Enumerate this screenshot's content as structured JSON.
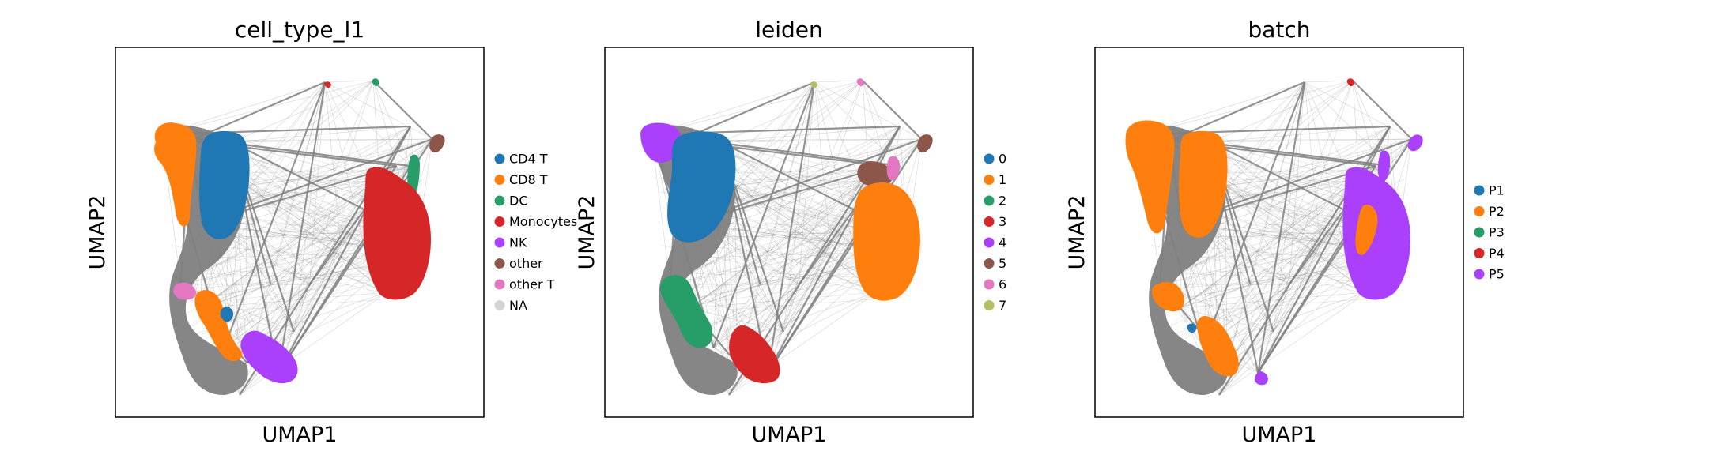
{
  "chart_data": [
    {
      "type": "scatter",
      "title": "cell_type_l1",
      "xlabel": "UMAP1",
      "ylabel": "UMAP2",
      "xlim": [
        0,
        10
      ],
      "ylim": [
        0,
        10
      ],
      "grid": false,
      "legend_position": "right",
      "ticks": false,
      "series": [
        {
          "name": "CD4 T",
          "color": "#1f77b4"
        },
        {
          "name": "CD8 T",
          "color": "#ff7f0e"
        },
        {
          "name": "DC",
          "color": "#279e68"
        },
        {
          "name": "Monocytes",
          "color": "#d62728"
        },
        {
          "name": "NK",
          "color": "#aa40fc"
        },
        {
          "name": "other",
          "color": "#8c564b"
        },
        {
          "name": "other T",
          "color": "#e377c2"
        },
        {
          "name": "NA",
          "color": "#d3d3d3"
        }
      ]
    },
    {
      "type": "scatter",
      "title": "leiden",
      "xlabel": "UMAP1",
      "ylabel": "UMAP2",
      "xlim": [
        0,
        10
      ],
      "ylim": [
        0,
        10
      ],
      "grid": false,
      "legend_position": "right",
      "ticks": false,
      "series": [
        {
          "name": "0",
          "color": "#1f77b4"
        },
        {
          "name": "1",
          "color": "#ff7f0e"
        },
        {
          "name": "2",
          "color": "#279e68"
        },
        {
          "name": "3",
          "color": "#d62728"
        },
        {
          "name": "4",
          "color": "#aa40fc"
        },
        {
          "name": "5",
          "color": "#8c564b"
        },
        {
          "name": "6",
          "color": "#e377c2"
        },
        {
          "name": "7",
          "color": "#b5bd61"
        }
      ]
    },
    {
      "type": "scatter",
      "title": "batch",
      "xlabel": "UMAP1",
      "ylabel": "UMAP2",
      "xlim": [
        0,
        10
      ],
      "ylim": [
        0,
        10
      ],
      "grid": false,
      "legend_position": "right",
      "ticks": false,
      "series": [
        {
          "name": "P1",
          "color": "#1f77b4"
        },
        {
          "name": "P2",
          "color": "#ff7f0e"
        },
        {
          "name": "P3",
          "color": "#279e68"
        },
        {
          "name": "P4",
          "color": "#d62728"
        },
        {
          "name": "P5",
          "color": "#aa40fc"
        }
      ]
    }
  ],
  "colors": {
    "edge": "#808080",
    "cluster_gray": "#808080"
  }
}
